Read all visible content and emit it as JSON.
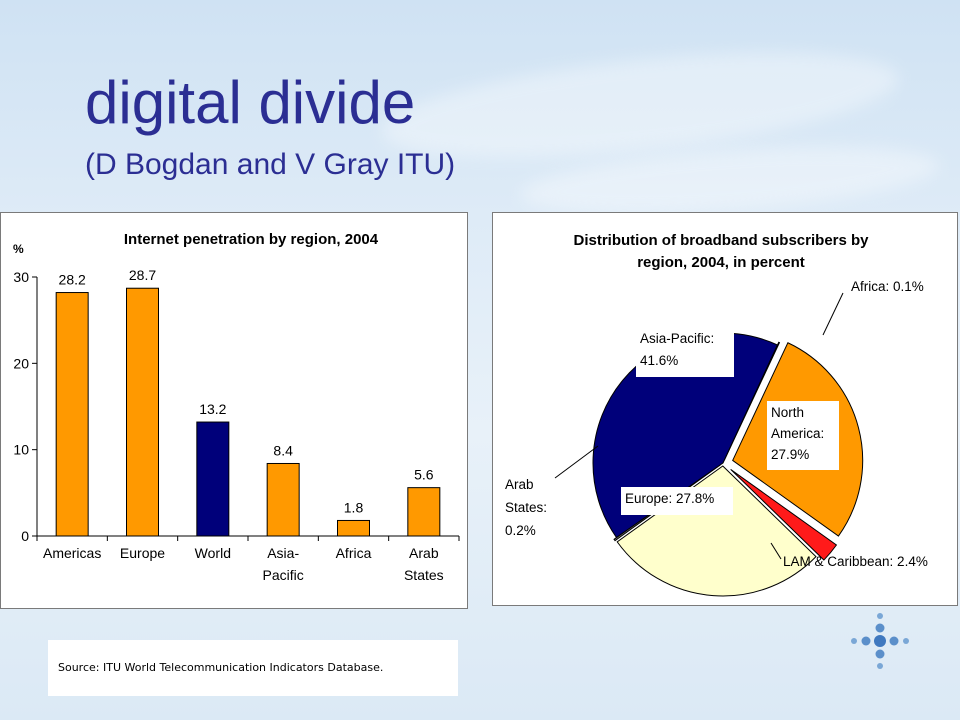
{
  "slide": {
    "title": "digital divide",
    "subtitle": "(D Bogdan and V Gray ITU)",
    "source": "Source: ITU World Telecommunication Indicators Database."
  },
  "colors": {
    "title": "#2b2e93",
    "orange": "#ff9900",
    "navy": "#00007a",
    "cream": "#ffffcc",
    "red": "#ff1a1a",
    "grey": "#808080"
  },
  "chart_data": [
    {
      "type": "bar",
      "title": "Internet penetration by region, 2004",
      "ylabel": "%",
      "xlabel": "",
      "ylim": [
        0,
        30
      ],
      "yticks": [
        0,
        10,
        20,
        30
      ],
      "categories": [
        "Americas",
        "Europe",
        "World",
        "Asia-Pacific",
        "Africa",
        "Arab States"
      ],
      "category_lines": [
        [
          "Americas"
        ],
        [
          "Europe"
        ],
        [
          "World"
        ],
        [
          "Asia-",
          "Pacific"
        ],
        [
          "Africa"
        ],
        [
          "Arab",
          "States"
        ]
      ],
      "values": [
        28.2,
        28.7,
        13.2,
        8.4,
        1.8,
        5.6
      ],
      "value_labels": [
        "28.2",
        "28.7",
        "13.2",
        "8.4",
        "1.8",
        "5.6"
      ],
      "bar_colors": [
        "#ff9900",
        "#ff9900",
        "#00007a",
        "#ff9900",
        "#ff9900",
        "#ff9900"
      ],
      "grid": false
    },
    {
      "type": "pie",
      "title": "Distribution of broadband subscribers by region, 2004, in percent",
      "title_lines": [
        "Distribution of broadband subscribers by",
        "region, 2004, in percent"
      ],
      "slices": [
        {
          "label": "Asia-Pacific",
          "value": 41.6,
          "label_lines": [
            "Asia-Pacific:",
            "41.6%"
          ],
          "color": "#00007a"
        },
        {
          "label": "Africa",
          "value": 0.1,
          "label_lines": [
            "Africa: 0.1%"
          ],
          "color": "#808080"
        },
        {
          "label": "North America",
          "value": 27.9,
          "label_lines": [
            "North",
            "America:",
            " 27.9%"
          ],
          "color": "#ff9900"
        },
        {
          "label": "LAM & Caribbean",
          "value": 2.4,
          "label_lines": [
            "LAM & Caribbean: 2.4%"
          ],
          "color": "#ff1a1a"
        },
        {
          "label": "Europe",
          "value": 27.8,
          "label_lines": [
            "Europe: 27.8%"
          ],
          "color": "#ffffcc"
        },
        {
          "label": "Arab States",
          "value": 0.2,
          "label_lines": [
            "Arab",
            "States:",
            "0.2%"
          ],
          "color": "#808080"
        }
      ]
    }
  ]
}
